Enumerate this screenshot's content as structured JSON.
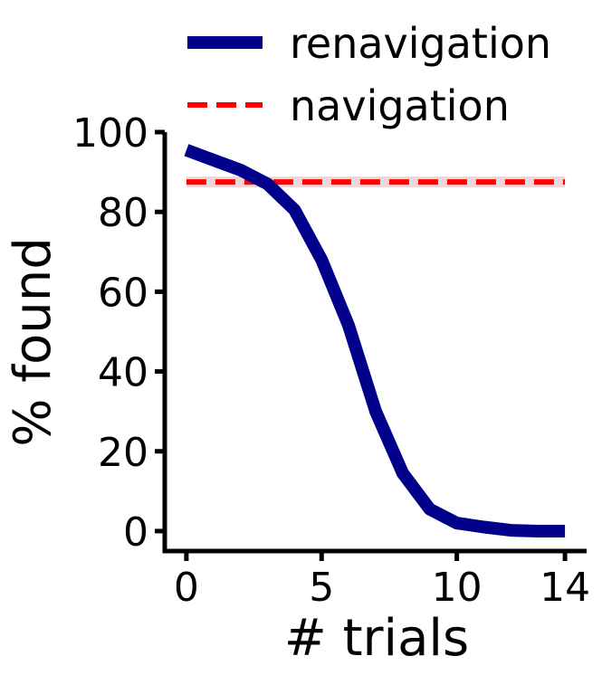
{
  "chart_data": {
    "type": "line",
    "xlabel": "# trials",
    "ylabel": "% found",
    "xlim": [
      -0.8,
      14.8
    ],
    "ylim": [
      -5,
      100
    ],
    "xticks": [
      0,
      5,
      10,
      14
    ],
    "yticks": [
      0,
      20,
      40,
      60,
      80,
      100
    ],
    "legend_position": "top",
    "series": [
      {
        "name": "renavigation",
        "style": "solid",
        "color": "#00008b",
        "x": [
          0,
          1,
          2,
          3,
          4,
          5,
          6,
          7,
          8,
          9,
          10,
          11,
          12,
          13,
          14
        ],
        "values": [
          95.5,
          93.0,
          90.5,
          87.0,
          80.5,
          68.0,
          51.5,
          30.0,
          14.5,
          5.5,
          2.0,
          1.0,
          0.2,
          0.0,
          0.0
        ]
      },
      {
        "name": "navigation",
        "style": "dashed",
        "color": "#ff0000",
        "x": [
          0,
          14
        ],
        "values": [
          87.5,
          87.5
        ]
      }
    ]
  }
}
